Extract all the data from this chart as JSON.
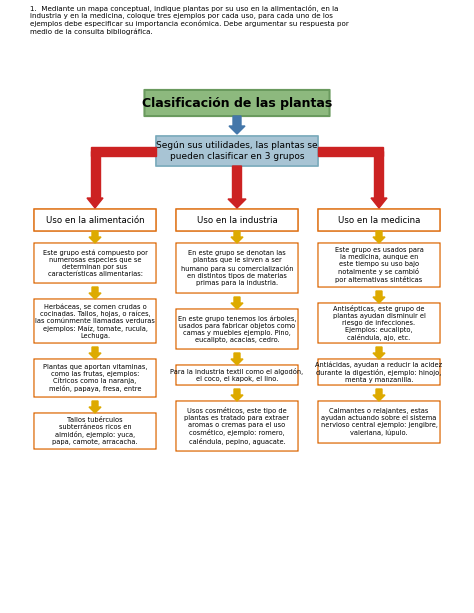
{
  "title": "Clasificación de las plantas",
  "subtitle": "Según sus utilidades, las plantas se\npueden clasificar en 3 grupos",
  "intro_text": "1.  Mediante un mapa conceptual, indique plantas por su uso en la alimentación, en la\nindustria y en la medicina, coloque tres ejemplos por cada uso, para cada uno de los\nejemplos debe especificar su importancia económica. Debe argumentar su respuesta por\nmedio de la consulta bibliográfica.",
  "col_headers": [
    "Uso en la alimentación",
    "Uso en la industria",
    "Uso en la medicina"
  ],
  "col1_boxes": [
    "Este grupo está compuesto por\nnumerosas especies que se\ndeterminan por sus\ncaracterísticas alimentarias:",
    "Herbáceas, se comen crudas o\ncocinadas. Tallos, hojas, o raíces,\nlas comúnmente llamadas verduras\nejemplos: Maíz, tomate, rucula,\nLechuga.",
    "Plantas que aportan vitaminas,\ncomo las frutas, ejemplos:\nCítricos como la naranja,\nmelón, papaya, fresa, entre",
    "Tallos tubérculos\nsubterráneos ricos en\nalmidón, ejemplo: yuca,\npapa, camote, arracacha."
  ],
  "col2_boxes": [
    "En este grupo se denotan las\nplantas que le sirven a ser\nhumano para su comercialización\nen distintos tipos de materias\nprimas para la industria.",
    "En este grupo tenemos los árboles,\nusados para fabricar objetos como\ncamas y muebles ejemplo. Pino,\neucalipto, acacias, cedro.",
    "Para la industria textil como el algodón,\nel coco, el kapok, el lino.",
    "Usos cosméticos, este tipo de\nplantas es tratado para extraer\naromas o cremas para el uso\ncosmético, ejemplo: romero,\ncaléndula, pepino, aguacate."
  ],
  "col3_boxes": [
    "Este grupo es usados para\nla medicina, aunque en\neste tiempo su uso bajo\nnotalmente y se cambió\npor alternativas sintéticas",
    "Antisépticas, este grupo de\nplantas ayudan disminuir el\nriesgo de infecciones.\nEjemplos: eucalipto,\ncaléndula, ajo, etc.",
    "Antiácidas, ayudan a reducir la acidez\ndurante la digestión, ejemplo: hinojo,\nmenta y manzanilla.",
    "Calmantes o relajantes, estas\nayudan actuando sobre el sistema\nnervioso central ejemplo: jengibre,\nvaleriana, lúpulo."
  ],
  "title_bg": "#8db97e",
  "title_border": "#6a9a5e",
  "subtitle_bg": "#a8c4d4",
  "subtitle_border": "#7aaabb",
  "header_border": "#e07820",
  "box_border": "#e07820",
  "arrow_red": "#cc2222",
  "arrow_yellow": "#ddaa00",
  "arrow_blue": "#4477aa",
  "bg_color": "#ffffff"
}
